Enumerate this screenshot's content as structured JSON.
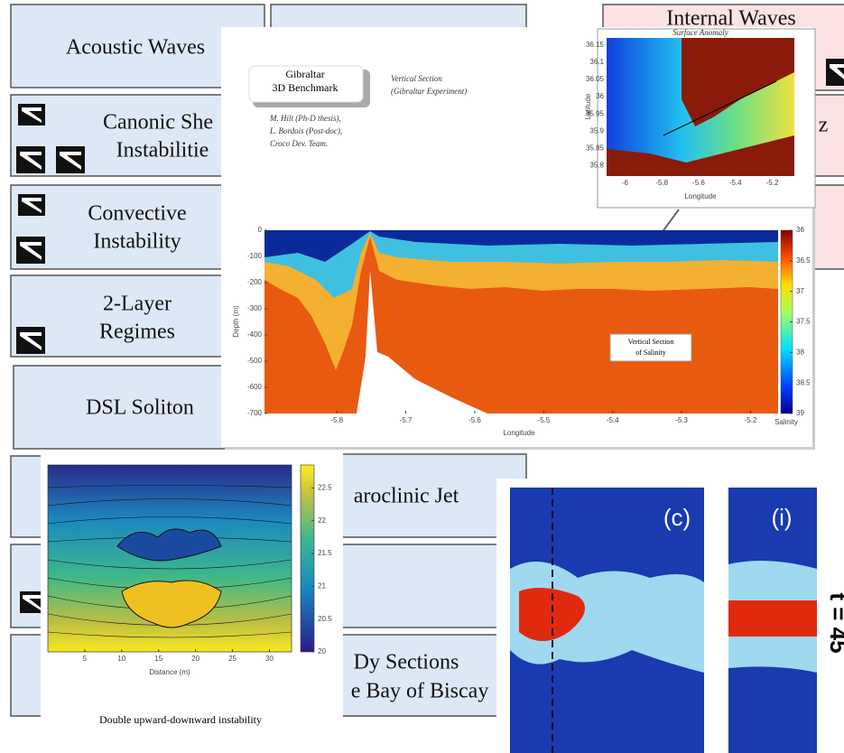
{
  "boxes": {
    "acoustic": "Acoustic Waves",
    "canonic": [
      "Canonic She",
      "Instabilitie"
    ],
    "convective": [
      "Convective",
      "Instability"
    ],
    "two_layer": [
      "2-Layer",
      "Regimes"
    ],
    "dsl": "DSL Soliton",
    "baroclinic": "aroclinic Jet",
    "biscay": [
      "Dy Sections",
      "e Bay of Biscay"
    ],
    "internal": "Internal Waves",
    "z": "z"
  },
  "gibraltar": {
    "badge": [
      "Gibraltar",
      "3D Benchmark"
    ],
    "subtitle": [
      "Vertical Section",
      "(Gibraltar Experiment)"
    ],
    "authors": [
      "M. Hilt (Ph-D thesis),",
      "L. Bordois (Post-doc),",
      "Croco Dev. Team."
    ],
    "map": {
      "title": "Surface Anomaly",
      "ylabel": "Latitude",
      "xlabel": "Longitude",
      "ylim": [
        35.77,
        36.17
      ],
      "yticks": [
        36.15,
        36.1,
        36.05,
        36,
        35.95,
        35.9,
        35.85,
        35.8
      ],
      "xlim": [
        -6.1,
        -5.08
      ],
      "xticks": [
        -6,
        -5.8,
        -5.6,
        -5.4,
        -5.2
      ]
    },
    "section": {
      "ylabel": "Depth (m)",
      "xlabel": "Longitude",
      "ylim": [
        -700,
        0
      ],
      "yticks": [
        0,
        -100,
        -200,
        -300,
        -400,
        -500,
        -600,
        -700
      ],
      "xlim": [
        -5.905,
        -5.16
      ],
      "xticks": [
        -5.8,
        -5.7,
        -5.6,
        -5.5,
        -5.4,
        -5.3,
        -5.2
      ],
      "colorbar": {
        "lim": [
          36,
          39
        ],
        "ticks": [
          39,
          38.5,
          38,
          37.5,
          37,
          36.5,
          36
        ],
        "label": "Salinity"
      },
      "annotation": [
        "Vertical Section",
        "of Salinity"
      ]
    }
  },
  "instability": {
    "xlabel": "Distance (m)",
    "xlim": [
      0,
      33
    ],
    "xticks": [
      5,
      10,
      15,
      20,
      25,
      30
    ],
    "colorbar": {
      "lim": [
        20,
        22.85
      ],
      "ticks": [
        22.5,
        22,
        21.5,
        21,
        20.5,
        20
      ]
    },
    "caption": "Double upward-downward instability"
  },
  "jet": {
    "panels": [
      "(c)",
      "(i)"
    ],
    "time": "t = 45"
  }
}
